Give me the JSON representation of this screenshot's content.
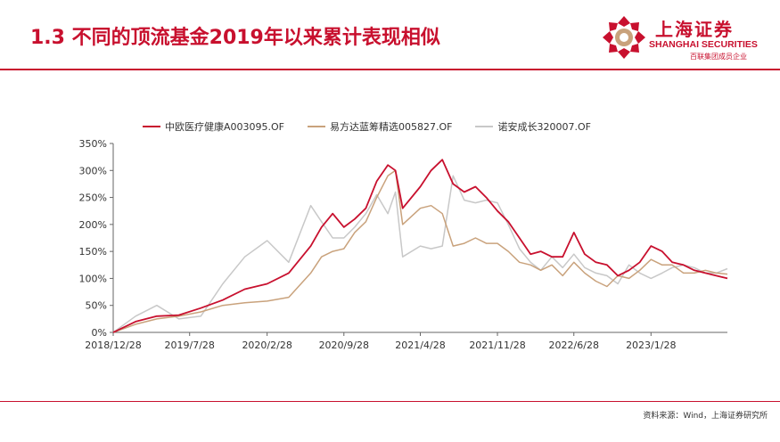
{
  "header": {
    "title": "1.3 不同的顶流基金2019年以来累计表现相似",
    "logo": {
      "name": "上海证券",
      "english": "SHANGHAI SECURITIES",
      "subtitle": "百联集团成员企业"
    }
  },
  "colors": {
    "brand": "#c8102e",
    "series_1": "#c8102e",
    "series_2": "#c9a27c",
    "series_3": "#c8c8c8"
  },
  "chart_data": {
    "type": "line",
    "title": "",
    "xlabel": "",
    "ylabel": "",
    "ylim": [
      0,
      350
    ],
    "y_ticks": [
      "0%",
      "50%",
      "100%",
      "150%",
      "200%",
      "250%",
      "300%",
      "350%"
    ],
    "y_tick_values": [
      0,
      50,
      100,
      150,
      200,
      250,
      300,
      350
    ],
    "x_tick_labels": [
      "2018/12/28",
      "2019/7/28",
      "2020/2/28",
      "2020/9/28",
      "2021/4/28",
      "2021/11/28",
      "2022/6/28",
      "2023/1/28"
    ],
    "legend_position": "top",
    "grid": false,
    "x": [
      "2018-12-28",
      "2019-02-28",
      "2019-04-28",
      "2019-06-28",
      "2019-08-28",
      "2019-10-28",
      "2019-12-28",
      "2020-02-28",
      "2020-04-28",
      "2020-06-28",
      "2020-07-28",
      "2020-08-28",
      "2020-09-28",
      "2020-10-28",
      "2020-11-28",
      "2020-12-28",
      "2021-01-28",
      "2021-02-18",
      "2021-03-10",
      "2021-04-28",
      "2021-05-28",
      "2021-06-28",
      "2021-07-28",
      "2021-08-28",
      "2021-09-28",
      "2021-10-28",
      "2021-11-28",
      "2021-12-28",
      "2022-01-28",
      "2022-02-28",
      "2022-03-28",
      "2022-04-28",
      "2022-05-28",
      "2022-06-28",
      "2022-07-28",
      "2022-08-28",
      "2022-09-28",
      "2022-10-28",
      "2022-11-28",
      "2022-12-28",
      "2023-01-28",
      "2023-02-28",
      "2023-03-28",
      "2023-04-28",
      "2023-05-28",
      "2023-06-28",
      "2023-07-28",
      "2023-08-28"
    ],
    "series": [
      {
        "name": "中欧医疗健康A003095.OF",
        "color": "#c8102e",
        "values": [
          0,
          20,
          30,
          32,
          45,
          60,
          80,
          90,
          110,
          160,
          195,
          220,
          195,
          210,
          230,
          280,
          310,
          300,
          230,
          270,
          300,
          320,
          275,
          260,
          270,
          250,
          225,
          205,
          175,
          145,
          150,
          140,
          140,
          185,
          145,
          130,
          125,
          105,
          115,
          130,
          160,
          150,
          130,
          125,
          115,
          110,
          105,
          100
        ]
      },
      {
        "name": "易方达蓝筹精选005827.OF",
        "color": "#c9a27c",
        "values": [
          0,
          15,
          25,
          30,
          38,
          50,
          55,
          58,
          65,
          110,
          140,
          150,
          155,
          185,
          205,
          250,
          290,
          300,
          200,
          230,
          235,
          220,
          160,
          165,
          175,
          165,
          165,
          150,
          130,
          125,
          115,
          125,
          105,
          130,
          110,
          95,
          85,
          105,
          100,
          115,
          135,
          125,
          125,
          110,
          110,
          115,
          110,
          108
        ]
      },
      {
        "name": "诺安成长320007.OF",
        "color": "#c8c8c8",
        "values": [
          0,
          30,
          50,
          25,
          30,
          90,
          140,
          170,
          130,
          235,
          205,
          175,
          175,
          195,
          220,
          255,
          220,
          260,
          140,
          160,
          155,
          160,
          290,
          245,
          240,
          245,
          240,
          200,
          155,
          130,
          115,
          140,
          120,
          145,
          120,
          110,
          105,
          90,
          125,
          110,
          100,
          110,
          120,
          125,
          120,
          110,
          110,
          118
        ]
      }
    ]
  },
  "footer": {
    "source": "资料来源：Wind，上海证券研究所"
  }
}
